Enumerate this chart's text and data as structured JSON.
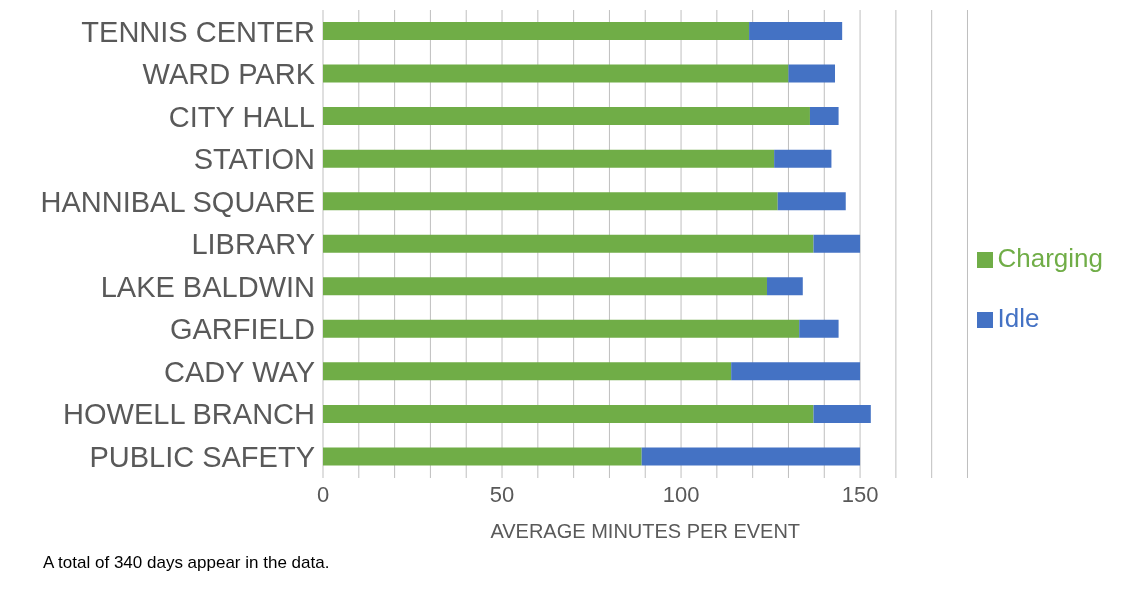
{
  "chart_data": {
    "type": "bar",
    "orientation": "horizontal",
    "stacked": true,
    "xlabel": "AVERAGE MINUTES PER EVENT",
    "categories": [
      "TENNIS CENTER",
      "WARD PARK",
      "CITY HALL",
      "STATION",
      "HANNIBAL SQUARE",
      "LIBRARY",
      "LAKE BALDWIN",
      "GARFIELD",
      "CADY WAY",
      "HOWELL BRANCH",
      "PUBLIC SAFETY"
    ],
    "series": [
      {
        "name": "Charging",
        "color": "#70ad47",
        "values": [
          119,
          130,
          136,
          126,
          127,
          137,
          124,
          133,
          114,
          137,
          89
        ]
      },
      {
        "name": "Idle",
        "color": "#4472c4",
        "values": [
          26,
          13,
          8,
          16,
          19,
          13,
          10,
          11,
          36,
          16,
          61
        ]
      }
    ],
    "xlim": [
      0,
      180
    ],
    "xticks": [
      0,
      {
        "value": 10,
        "label": null
      },
      {
        "value": 20,
        "label": null
      },
      {
        "value": 30,
        "label": null
      },
      {
        "value": 40,
        "label": null
      },
      50,
      {
        "value": 60,
        "label": null
      },
      {
        "value": 70,
        "label": null
      },
      {
        "value": 80,
        "label": null
      },
      {
        "value": 90,
        "label": null
      },
      100,
      {
        "value": 110,
        "label": null
      },
      {
        "value": 120,
        "label": null
      },
      {
        "value": 130,
        "label": null
      },
      {
        "value": 140,
        "label": null
      },
      150,
      {
        "value": 160,
        "label": null
      },
      {
        "value": 170,
        "label": null
      },
      {
        "value": 180,
        "label": null
      }
    ],
    "grid": "x",
    "legend": "right",
    "annotations": [
      "A total of 340 days appear in the data."
    ]
  }
}
